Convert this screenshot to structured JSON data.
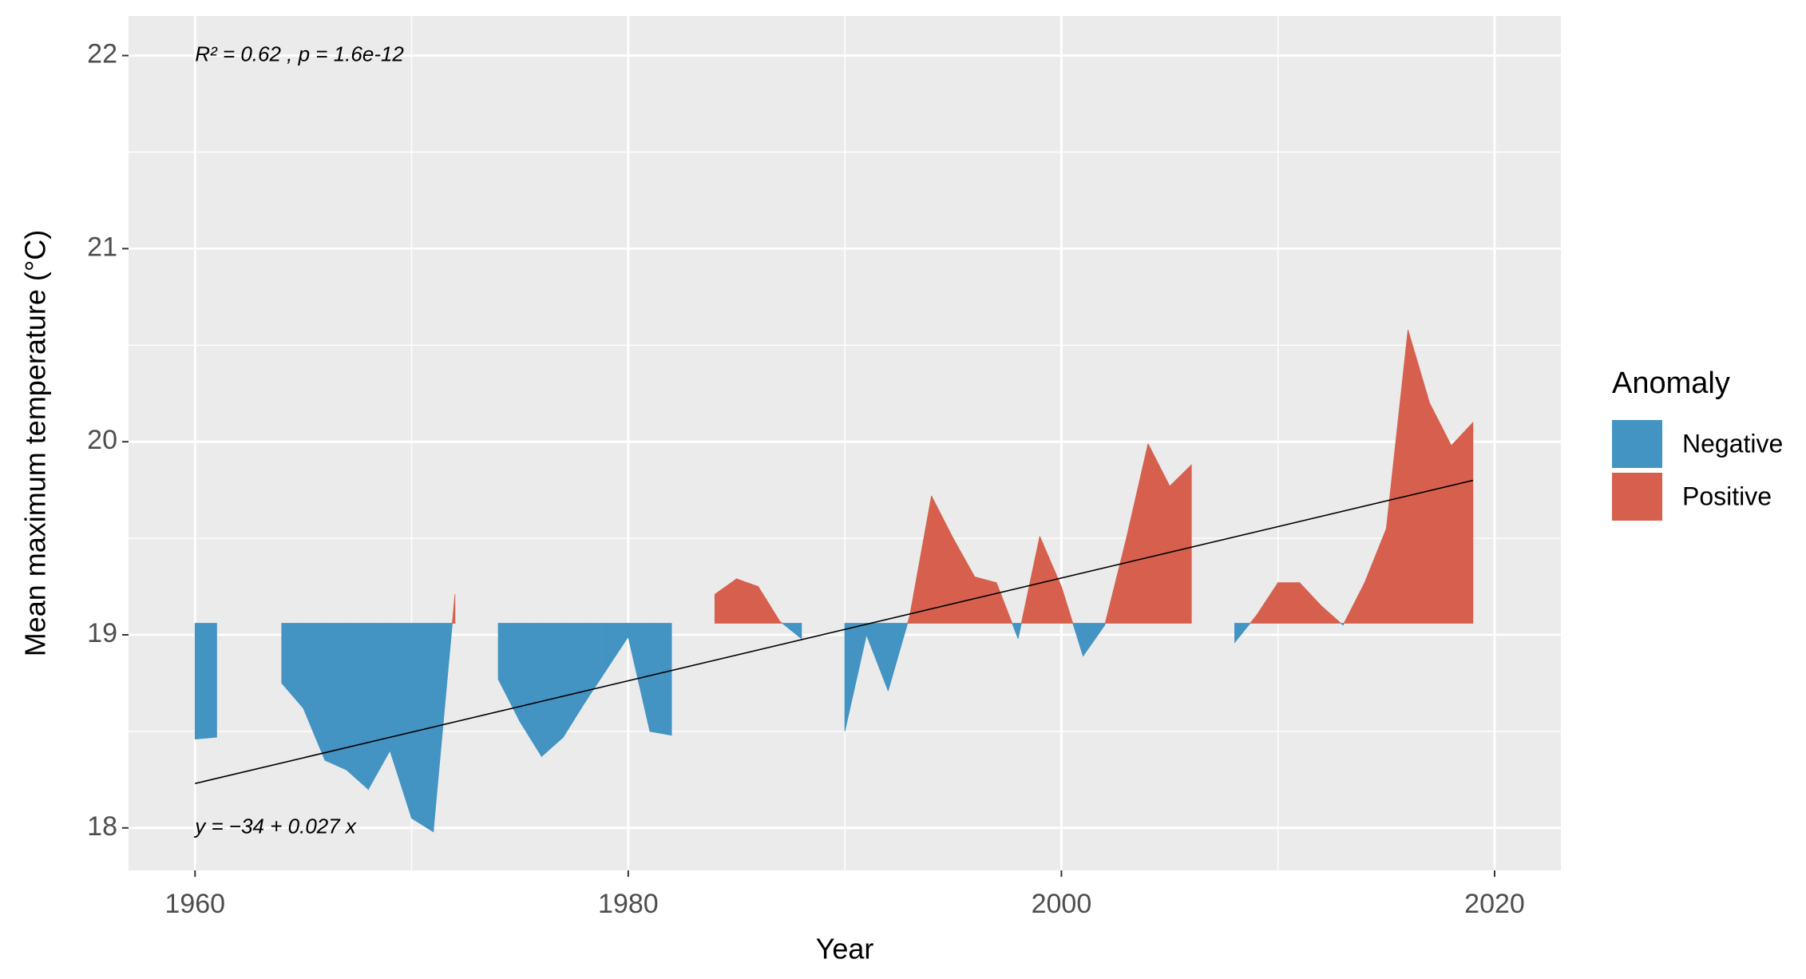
{
  "chart_data": {
    "type": "anomaly_area",
    "x_label": "Year",
    "y_label": "Mean maximum temperature (°C)",
    "legend_title": "Anomaly",
    "legend_position": "right",
    "grid": true,
    "baseline": 19.06,
    "xlim": [
      1956.93,
      2023.06
    ],
    "ylim": [
      17.78,
      22.205
    ],
    "xticks": [
      1960,
      1980,
      2000,
      2020
    ],
    "yticks": [
      18,
      19,
      20,
      21,
      22
    ],
    "series": [
      {
        "name": "Negative",
        "color": "#4393c3"
      },
      {
        "name": "Positive",
        "color": "#d6604d"
      }
    ],
    "x": [
      1960,
      1961,
      1962,
      1963,
      1964,
      1965,
      1966,
      1967,
      1968,
      1969,
      1970,
      1971,
      1972,
      1973,
      1974,
      1975,
      1976,
      1977,
      1978,
      1979,
      1980,
      1981,
      1982,
      1983,
      1984,
      1985,
      1986,
      1987,
      1988,
      1989,
      1990,
      1991,
      1992,
      1993,
      1994,
      1995,
      1996,
      1997,
      1998,
      1999,
      2000,
      2001,
      2002,
      2003,
      2004,
      2005,
      2006,
      2007,
      2008,
      2009,
      2010,
      2011,
      2012,
      2013,
      2014,
      2015,
      2016,
      2017,
      2018,
      2019
    ],
    "values": [
      18.46,
      18.47,
      null,
      null,
      18.75,
      18.62,
      18.35,
      18.3,
      18.2,
      18.4,
      18.05,
      17.98,
      19.21,
      null,
      18.77,
      18.55,
      18.37,
      18.47,
      18.65,
      18.82,
      18.99,
      18.5,
      18.48,
      null,
      19.21,
      19.29,
      19.25,
      19.07,
      18.98,
      null,
      18.5,
      19.0,
      18.71,
      19.1,
      19.72,
      19.5,
      19.3,
      19.27,
      18.98,
      19.51,
      19.25,
      18.89,
      19.05,
      19.5,
      19.99,
      19.77,
      19.88,
      null,
      18.96,
      19.1,
      19.27,
      19.27,
      19.15,
      19.05,
      19.27,
      19.55,
      20.58,
      20.2,
      19.98,
      20.1
    ],
    "trend": {
      "x": [
        1960,
        2019
      ],
      "y": [
        18.23,
        19.8
      ],
      "color": "#000000"
    },
    "annotations": [
      "R² = 0.62 , p = 1.6e-12",
      "y = −34 + 0.027 x"
    ]
  }
}
